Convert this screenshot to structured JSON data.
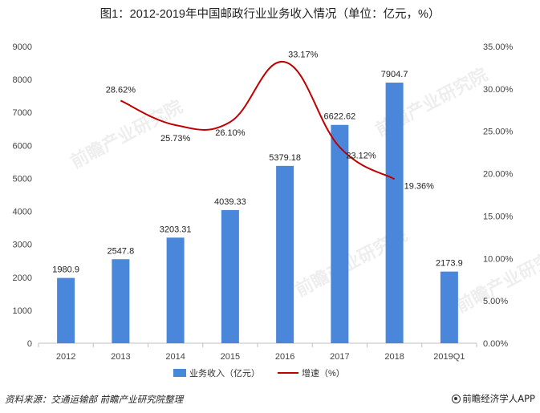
{
  "title": "图1：2012-2019年中国邮政行业业务收入情况（单位：亿元，%）",
  "chart_data": {
    "type": "bar",
    "categories": [
      "2012",
      "2013",
      "2014",
      "2015",
      "2016",
      "2017",
      "2018",
      "2019Q1"
    ],
    "series": [
      {
        "name": "业务收入（亿元）",
        "type": "bar",
        "axis": "left",
        "color": "#4a86d9",
        "values": [
          1980.9,
          2547.8,
          3203.31,
          4039.33,
          5379.18,
          6622.62,
          7904.7,
          2173.9
        ],
        "labels": [
          "1980.9",
          "2547.8",
          "3203.31",
          "4039.33",
          "5379.18",
          "6622.62",
          "7904.7",
          "2173.9"
        ]
      },
      {
        "name": "增速（%）",
        "type": "line",
        "axis": "right",
        "color": "#c00000",
        "values": [
          null,
          28.62,
          25.73,
          26.1,
          33.17,
          23.12,
          19.36,
          null
        ],
        "labels": [
          "",
          "28.62%",
          "25.73%",
          "26.10%",
          "33.17%",
          "23.12%",
          "19.36%",
          ""
        ]
      }
    ],
    "y_left": {
      "ylim": [
        0,
        9000
      ],
      "ticks": [
        0,
        1000,
        2000,
        3000,
        4000,
        5000,
        6000,
        7000,
        8000,
        9000
      ],
      "tick_labels": [
        "0",
        "1000",
        "2000",
        "3000",
        "4000",
        "5000",
        "6000",
        "7000",
        "8000",
        "9000"
      ]
    },
    "y_right": {
      "ylim": [
        0,
        35
      ],
      "ticks": [
        0,
        5,
        10,
        15,
        20,
        25,
        30,
        35
      ],
      "tick_labels": [
        "0.00%",
        "5.00%",
        "10.00%",
        "15.00%",
        "20.00%",
        "25.00%",
        "30.00%",
        "35.00%"
      ]
    },
    "grid": false,
    "legend_position": "bottom"
  },
  "footer": {
    "source": "资料来源：交通运输部 前瞻产业研究院整理",
    "brand": "前瞻经济学人APP"
  },
  "watermark": "前瞻产业研究院"
}
